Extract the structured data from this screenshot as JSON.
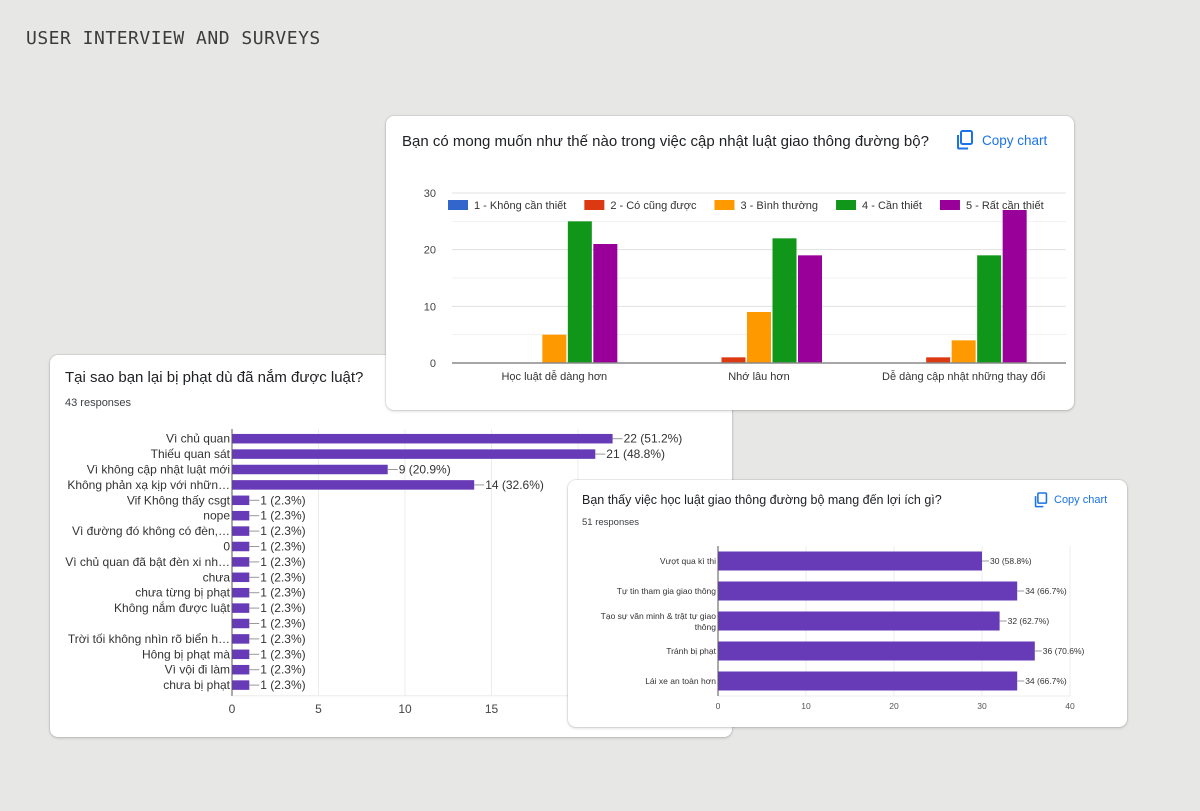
{
  "page": {
    "title": "USER INTERVIEW AND SURVEYS"
  },
  "cards": {
    "top": {
      "title": "Bạn có mong muốn như thế nào trong việc cập nhật luật giao thông đường bộ?",
      "copy_label": "Copy chart",
      "copy_icon": "copy-icon"
    },
    "left": {
      "title": "Tại sao bạn lại bị phạt dù đã nắm được luật?",
      "responses": "43 responses"
    },
    "right": {
      "title": "Bạn thấy việc học luật giao thông đường bộ mang đến lợi ích gì?",
      "responses": "51 responses",
      "copy_label": "Copy chart",
      "copy_icon": "copy-icon"
    }
  },
  "chart_data": [
    {
      "id": "top",
      "type": "bar",
      "title": "Bạn có mong muốn như thế nào trong việc cập nhật luật giao thông đường bộ?",
      "categories": [
        "Học luật dễ dàng hơn",
        "Nhớ lâu hơn",
        "Dễ dàng cập nhật những thay đổi"
      ],
      "series": [
        {
          "name": "1 - Không cần thiết",
          "color": "#3366cc",
          "values": [
            0,
            0,
            0
          ]
        },
        {
          "name": "2 - Có cũng được",
          "color": "#dc3912",
          "values": [
            0,
            1,
            1
          ]
        },
        {
          "name": "3 - Bình thường",
          "color": "#ff9900",
          "values": [
            5,
            9,
            4
          ]
        },
        {
          "name": "4 - Cần thiết",
          "color": "#109618",
          "values": [
            25,
            22,
            19
          ]
        },
        {
          "name": "5 - Rất cần thiết",
          "color": "#990099",
          "values": [
            21,
            19,
            27
          ]
        }
      ],
      "ylim": [
        0,
        30
      ],
      "yticks": [
        0,
        10,
        20,
        30
      ],
      "grid": true,
      "legend": "top"
    },
    {
      "id": "left",
      "type": "bar",
      "orientation": "horizontal",
      "title": "Tại sao bạn lại bị phạt dù đã nắm được luật?",
      "responses": 43,
      "color": "#673ab7",
      "categories": [
        "Vì chủ quan",
        "Thiếu quan sát",
        "Vì không cập nhật luật mới",
        "Không phản xạ kịp với nhữn…",
        "Vif Không thấy csgt",
        "nope",
        "Vì đường đó không có đèn,…",
        "0",
        "Vì chủ quan đã bật đèn xi nh…",
        "chưa",
        "chưa từng bị phạt",
        "Không nắm được luật",
        "",
        "Trời tối không nhìn rõ biển h…",
        "Hông bị phạt mà",
        "Vì vội đi làm",
        "chưa bị phạt"
      ],
      "values": [
        22,
        21,
        9,
        14,
        1,
        1,
        1,
        1,
        1,
        1,
        1,
        1,
        1,
        1,
        1,
        1,
        1
      ],
      "labels": [
        "22 (51.2%)",
        "21 (48.8%)",
        "9 (20.9%)",
        "14 (32.6%)",
        "1 (2.3%)",
        "1 (2.3%)",
        "1 (2.3%)",
        "1 (2.3%)",
        "1 (2.3%)",
        "1 (2.3%)",
        "1 (2.3%)",
        "1 (2.3%)",
        "1 (2.3%)",
        "1 (2.3%)",
        "1 (2.3%)",
        "1 (2.3%)",
        "1 (2.3%)"
      ],
      "xlim": [
        0,
        25
      ],
      "xticks": [
        0,
        5,
        10,
        15
      ],
      "grid": true
    },
    {
      "id": "right",
      "type": "bar",
      "orientation": "horizontal",
      "title": "Bạn thấy việc học luật giao thông đường bộ mang đến lợi ích gì?",
      "responses": 51,
      "color": "#673ab7",
      "categories": [
        "Vượt qua kì thi",
        "Tự tin tham gia giao thông",
        "Tạo sự văn minh & trật tự giao thông",
        "Tránh bị phạt",
        "Lái xe an toàn hơn"
      ],
      "values": [
        30,
        34,
        32,
        36,
        34
      ],
      "labels": [
        "30 (58.8%)",
        "34 (66.7%)",
        "32 (62.7%)",
        "36 (70.6%)",
        "34 (66.7%)"
      ],
      "xlim": [
        0,
        40
      ],
      "xticks": [
        0,
        10,
        20,
        30,
        40
      ],
      "grid": true
    }
  ]
}
